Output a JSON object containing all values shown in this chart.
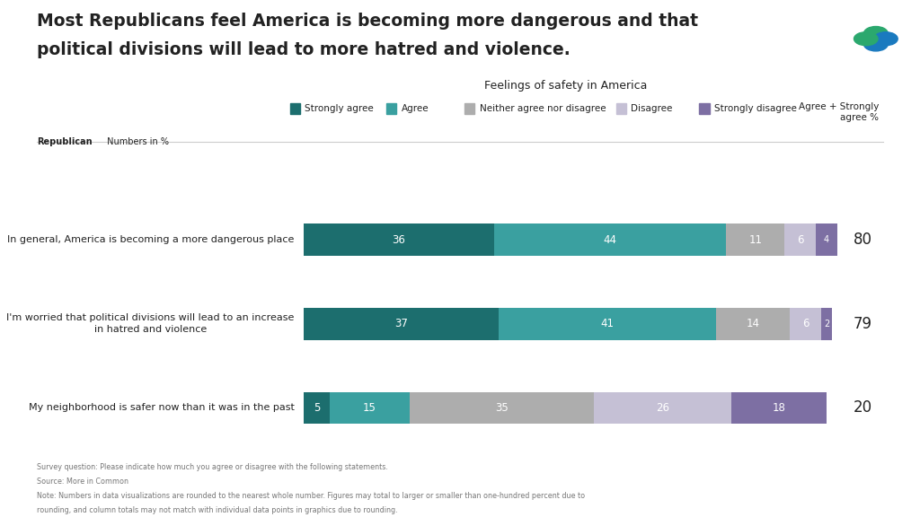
{
  "title_line1": "Most Republicans feel America is becoming more dangerous and that",
  "title_line2": "political divisions will lead to more hatred and violence.",
  "subtitle": "Feelings of safety in America",
  "sublabel_bold": "Republican",
  "sublabel_normal": " Numbers in %",
  "right_label": "Agree + Strongly\nagree %",
  "categories": [
    "In general, America is becoming a more dangerous place",
    "I'm worried that political divisions will lead to an increase\nin hatred and violence",
    "My neighborhood is safer now than it was in the past"
  ],
  "series_labels": [
    "Strongly agree",
    "Agree",
    "Neither agree nor disagree",
    "Disagree",
    "Strongly disagree"
  ],
  "colors": [
    "#1c6e6e",
    "#3aa0a0",
    "#adadad",
    "#c5c0d5",
    "#7d6fa3"
  ],
  "data": [
    [
      36,
      44,
      11,
      6,
      4
    ],
    [
      37,
      41,
      14,
      6,
      2
    ],
    [
      5,
      15,
      35,
      26,
      18
    ]
  ],
  "totals": [
    "80",
    "79",
    "20"
  ],
  "footnote1": "Survey question: Please indicate how much you agree or disagree with the following statements.",
  "footnote2": "Source: More in Common",
  "footnote3": "Note: Numbers in data visualizations are rounded to the nearest whole number. Figures may total to larger or smaller than one-hundred percent due to",
  "footnote4": "rounding, and column totals may not match with individual data points in graphics due to rounding.",
  "bg_color": "#ffffff",
  "text_color": "#222222",
  "label_color_light": "#ffffff"
}
